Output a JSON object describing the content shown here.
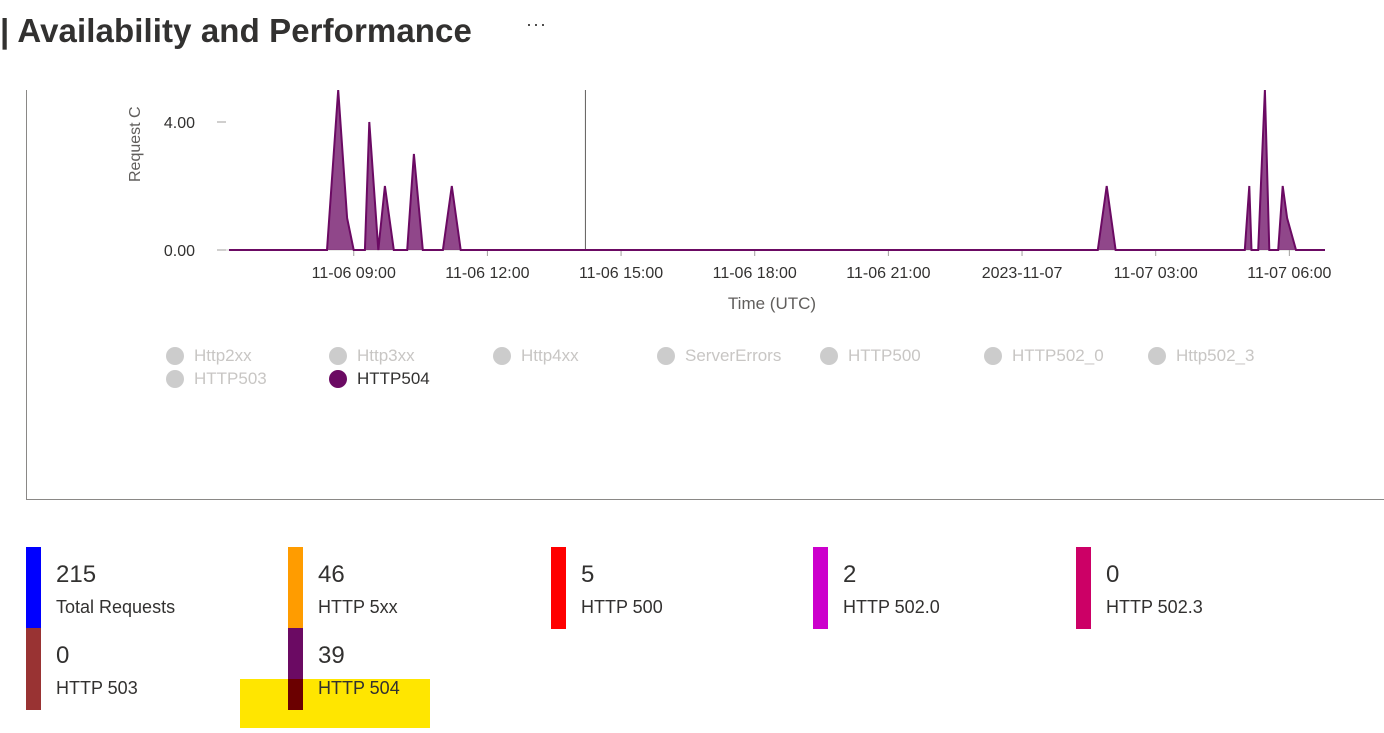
{
  "header": {
    "title": "| Availability and Performance",
    "more_label": "···"
  },
  "chart_data": {
    "type": "area",
    "title": "",
    "ylabel": "Request C",
    "xlabel": "Time (UTC)",
    "y_ticks": [
      "4.00",
      "0.00"
    ],
    "ylim": [
      0,
      5
    ],
    "x_ticks": [
      "11-06 09:00",
      "11-06 12:00",
      "11-06 15:00",
      "11-06 18:00",
      "11-06 21:00",
      "2023-11-07",
      "11-07 03:00",
      "11-07 06:00"
    ],
    "x_unit": "hours since 2023-11-06 00:00 UTC",
    "xlim": [
      6.2,
      30.8
    ],
    "cursor_x": 14.2,
    "series": [
      {
        "name": "HTTP504",
        "color": "#6b0a63",
        "x": [
          6.2,
          8.4,
          8.65,
          8.85,
          9.0,
          9.25,
          9.35,
          9.55,
          9.7,
          9.9,
          10.0,
          10.2,
          10.35,
          10.55,
          11.0,
          11.2,
          11.4,
          25.7,
          25.9,
          26.1,
          29.0,
          29.1,
          29.15,
          29.3,
          29.45,
          29.55,
          29.75,
          29.85,
          29.95,
          30.15,
          30.8
        ],
        "values": [
          0,
          0,
          5,
          1,
          0,
          0,
          4,
          0,
          2,
          0,
          0,
          0,
          3,
          0,
          0,
          2,
          0,
          0,
          2,
          0,
          0,
          2,
          0,
          0,
          5,
          0,
          0,
          2,
          1,
          0,
          0
        ]
      }
    ],
    "grid": false
  },
  "legend": {
    "items": [
      {
        "label": "Http2xx",
        "active": false
      },
      {
        "label": "Http3xx",
        "active": false
      },
      {
        "label": "Http4xx",
        "active": false
      },
      {
        "label": "ServerErrors",
        "active": false
      },
      {
        "label": "HTTP500",
        "active": false
      },
      {
        "label": "HTTP502_0",
        "active": false
      },
      {
        "label": "Http502_3",
        "active": false
      },
      {
        "label": "HTTP503",
        "active": false
      },
      {
        "label": "HTTP504",
        "active": true
      }
    ],
    "inactive_color": "#cccccc",
    "active_color": "#6b0a63"
  },
  "tiles": [
    {
      "value": "215",
      "label": "Total Requests",
      "color": "#0000ff"
    },
    {
      "value": "46",
      "label": "HTTP 5xx",
      "color": "#ff9c00"
    },
    {
      "value": "5",
      "label": "HTTP 500",
      "color": "#ff0000"
    },
    {
      "value": "2",
      "label": "HTTP 502.0",
      "color": "#cc00cc"
    },
    {
      "value": "0",
      "label": "HTTP 502.3",
      "color": "#cc0066"
    },
    {
      "value": "0",
      "label": "HTTP 503",
      "color": "#993333"
    },
    {
      "value": "39",
      "label": "HTTP 504",
      "color": "#6b0a63"
    }
  ]
}
